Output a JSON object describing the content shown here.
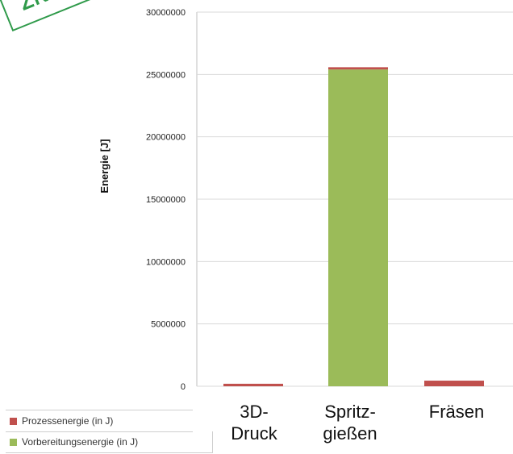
{
  "stamp_text": "ZN",
  "chart_data": {
    "type": "bar",
    "stacked": true,
    "categories": [
      "3D-\nDruck",
      "Spritz-\ngießen",
      "Fräsen"
    ],
    "series": [
      {
        "name": "Vorbereitungsenergie (in J)",
        "color": "#9bbb59",
        "values": [
          0,
          25400000,
          0
        ]
      },
      {
        "name": "Prozessenergie (in J)",
        "color": "#c0504d",
        "values": [
          200000,
          180000,
          450000
        ]
      }
    ],
    "ylabel": "Energie [J]",
    "ylim": [
      0,
      30000000
    ],
    "yticks": [
      "0",
      "5000000",
      "10000000",
      "15000000",
      "20000000",
      "25000000",
      "30000000"
    ],
    "grid": true
  },
  "legend": {
    "items": [
      {
        "label": "Prozessenergie (in J)",
        "color": "#c0504d"
      },
      {
        "label": "Vorbereitungsenergie (in J)",
        "color": "#9bbb59"
      }
    ]
  }
}
